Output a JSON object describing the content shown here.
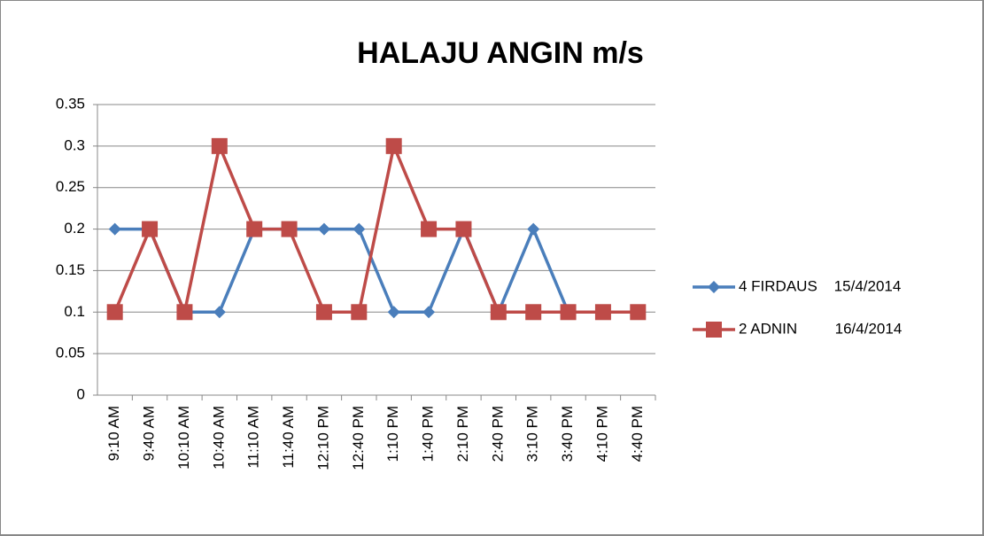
{
  "chart_data": {
    "type": "line",
    "title": "HALAJU ANGIN m/s",
    "categories": [
      "9:10 AM",
      "9:40 AM",
      "10:10 AM",
      "10:40 AM",
      "11:10 AM",
      "11:40 AM",
      "12:10 PM",
      "12:40 PM",
      "1:10 PM",
      "1:40 PM",
      "2:10 PM",
      "2:40 PM",
      "3:10 PM",
      "3:40 PM",
      "4:10 PM",
      "4:40 PM"
    ],
    "series": [
      {
        "name": "4 FIRDAUS    15/4/2014",
        "color": "#4a7ebb",
        "marker": "diamond",
        "values": [
          0.2,
          0.2,
          0.1,
          0.1,
          0.2,
          0.2,
          0.2,
          0.2,
          0.1,
          0.1,
          0.2,
          0.1,
          0.2,
          0.1,
          0.1,
          0.1
        ]
      },
      {
        "name": "2 ADNIN         16/4/2014",
        "color": "#be4b48",
        "marker": "square",
        "values": [
          0.1,
          0.2,
          0.1,
          0.3,
          0.2,
          0.2,
          0.1,
          0.1,
          0.3,
          0.2,
          0.2,
          0.1,
          0.1,
          0.1,
          0.1,
          0.1
        ]
      }
    ],
    "ylim": [
      0,
      0.35
    ],
    "yticks": [
      0,
      0.05,
      0.1,
      0.15,
      0.2,
      0.25,
      0.3,
      0.35
    ],
    "grid": true,
    "legend": "right"
  }
}
